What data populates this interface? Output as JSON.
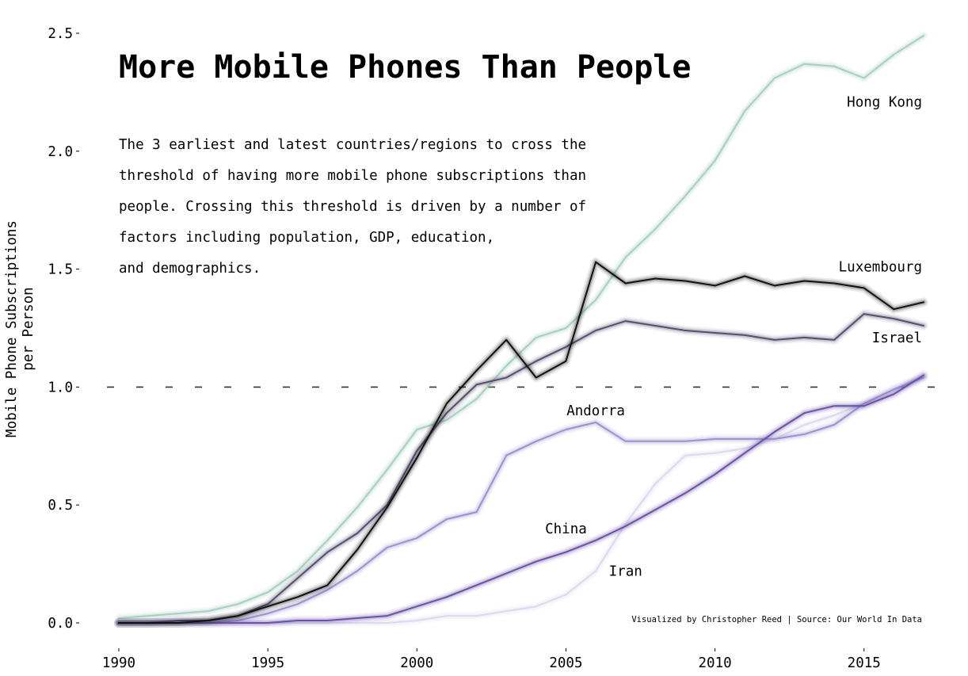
{
  "title": "More Mobile Phones Than People",
  "description_lines": [
    "The 3 earliest and latest countries/regions to cross the",
    "threshold of having more mobile phone subscriptions than",
    "people. Crossing this threshold is driven by a number of",
    "factors including population, GDP, education,",
    "and demographics."
  ],
  "credit": "Visualized by Christopher Reed | Source: Our World In Data",
  "ylabel_lines": [
    "Mobile Phone Subscriptions",
    "per Person"
  ],
  "chart_data": {
    "type": "line",
    "title": "More Mobile Phones Than People",
    "xlabel": "",
    "ylabel": "Mobile Phone Subscriptions per Person",
    "xlim": [
      1989,
      2018
    ],
    "ylim": [
      -0.12,
      2.57
    ],
    "x_ticks": [
      1990,
      1995,
      2000,
      2005,
      2010,
      2015
    ],
    "x_tick_labels": [
      "1990",
      "1995",
      "2000",
      "2005",
      "2010",
      "2015"
    ],
    "y_ticks": [
      0,
      0.5,
      1,
      1.5,
      2,
      2.5
    ],
    "y_tick_labels": [
      "0.0",
      "0.5",
      "1.0",
      "1.5",
      "2.0",
      "2.5"
    ],
    "grid": false,
    "legend": "none",
    "threshold": 1.0,
    "x": [
      1990,
      1991,
      1992,
      1993,
      1994,
      1995,
      1996,
      1997,
      1998,
      1999,
      2000,
      2001,
      2002,
      2003,
      2004,
      2005,
      2006,
      2007,
      2008,
      2009,
      2010,
      2011,
      2012,
      2013,
      2014,
      2015,
      2016,
      2017
    ],
    "series": [
      {
        "name": "Hong Kong",
        "color": "#a8cfc4",
        "values": [
          0.02,
          0.03,
          0.04,
          0.05,
          0.08,
          0.13,
          0.22,
          0.35,
          0.49,
          0.65,
          0.82,
          0.86,
          0.95,
          1.09,
          1.21,
          1.25,
          1.37,
          1.55,
          1.67,
          1.81,
          1.96,
          2.17,
          2.31,
          2.37,
          2.36,
          2.31,
          2.41,
          2.49
        ],
        "label_x": 2016.8,
        "label_y": 2.21
      },
      {
        "name": "Luxembourg",
        "color": "#111111",
        "values": [
          0.0,
          0.0,
          0.0,
          0.01,
          0.03,
          0.07,
          0.11,
          0.16,
          0.31,
          0.49,
          0.7,
          0.93,
          1.07,
          1.2,
          1.04,
          1.11,
          1.53,
          1.44,
          1.46,
          1.45,
          1.43,
          1.47,
          1.43,
          1.45,
          1.44,
          1.42,
          1.33,
          1.36
        ],
        "label_x": 2016.8,
        "label_y": 1.51
      },
      {
        "name": "Israel",
        "color": "#54506d",
        "values": [
          0.0,
          0.0,
          0.01,
          0.01,
          0.03,
          0.08,
          0.19,
          0.3,
          0.38,
          0.5,
          0.73,
          0.89,
          1.01,
          1.04,
          1.11,
          1.17,
          1.24,
          1.28,
          1.26,
          1.24,
          1.23,
          1.22,
          1.2,
          1.21,
          1.2,
          1.31,
          1.29,
          1.26
        ],
        "label_x": 2016.8,
        "label_y": 1.21
      },
      {
        "name": "Andorra",
        "color": "#9d92cf",
        "values": [
          0.0,
          0.0,
          0.0,
          0.0,
          0.01,
          0.04,
          0.08,
          0.14,
          0.22,
          0.32,
          0.36,
          0.44,
          0.47,
          0.71,
          0.77,
          0.82,
          0.85,
          0.77,
          0.77,
          0.77,
          0.78,
          0.78,
          0.78,
          0.8,
          0.84,
          0.93,
          0.99,
          1.04
        ],
        "label_x": 2006.0,
        "label_y": 0.9
      },
      {
        "name": "China",
        "color": "#6b52a8",
        "values": [
          0.0,
          0.0,
          0.0,
          0.0,
          0.0,
          0.0,
          0.01,
          0.01,
          0.02,
          0.03,
          0.07,
          0.11,
          0.16,
          0.21,
          0.26,
          0.3,
          0.35,
          0.41,
          0.48,
          0.55,
          0.63,
          0.72,
          0.81,
          0.89,
          0.92,
          0.92,
          0.97,
          1.05
        ],
        "label_x": 2005.0,
        "label_y": 0.4
      },
      {
        "name": "Iran",
        "color": "#ddd9ee",
        "values": [
          0.0,
          0.0,
          0.0,
          0.0,
          0.0,
          0.0,
          0.0,
          0.0,
          0.0,
          0.0,
          0.01,
          0.03,
          0.03,
          0.05,
          0.07,
          0.12,
          0.22,
          0.42,
          0.59,
          0.71,
          0.72,
          0.74,
          0.78,
          0.84,
          0.88,
          0.93,
          0.99,
          1.05
        ],
        "label_x": 2007.0,
        "label_y": 0.22
      }
    ]
  }
}
